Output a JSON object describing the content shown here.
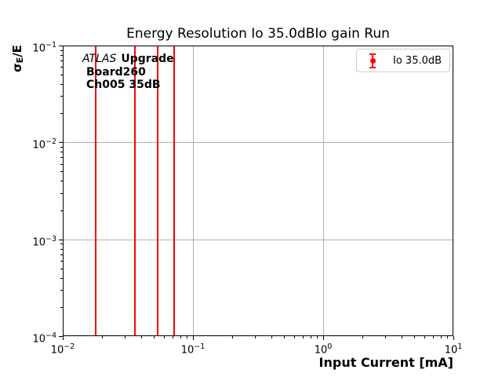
{
  "title": "Energy Resolution Io 35.0dBIo gain Run",
  "axes": {
    "xlabel": "Input Current [mA]",
    "ylabel_sigma": "σ",
    "ylabel_sub": "E",
    "ylabel_rest": "/E",
    "x_tick_labels": [
      "10⁻²",
      "10⁻¹",
      "10⁰",
      "10¹"
    ],
    "y_tick_labels": [
      "10⁻¹",
      "10⁻²",
      "10⁻³",
      "10⁻⁴"
    ]
  },
  "annotation": {
    "atlas": "ATLAS",
    "upgrade": "Upgrade",
    "line2": "Board260",
    "line3": "Ch005 35dB"
  },
  "legend": {
    "label": "Io 35.0dB"
  },
  "chart_data": {
    "type": "scatter",
    "subtype": "errorbar",
    "title": "Energy Resolution Io 35.0dBIo gain Run",
    "xlabel": "Input Current [mA]",
    "ylabel": "σE/E",
    "x_scale": "log",
    "y_scale": "log",
    "xlim": [
      0.01,
      10
    ],
    "ylim": [
      0.0001,
      0.1
    ],
    "x_major_ticks": [
      0.01,
      0.1,
      1,
      10
    ],
    "y_major_ticks": [
      0.1,
      0.01,
      0.001,
      0.0001
    ],
    "grid": "major",
    "grid_color": "#b0b0b0",
    "legend_position": "upper right",
    "annotations": [
      "ATLAS Upgrade",
      "Board260",
      "Ch005 35dB"
    ],
    "series": [
      {
        "name": "Io 35.0dB",
        "color": "#ff0000",
        "x": [
          0.0178,
          0.0356,
          0.0534,
          0.0712
        ],
        "error_bars_span_full_y_range": true,
        "markers_visible": false
      }
    ]
  }
}
